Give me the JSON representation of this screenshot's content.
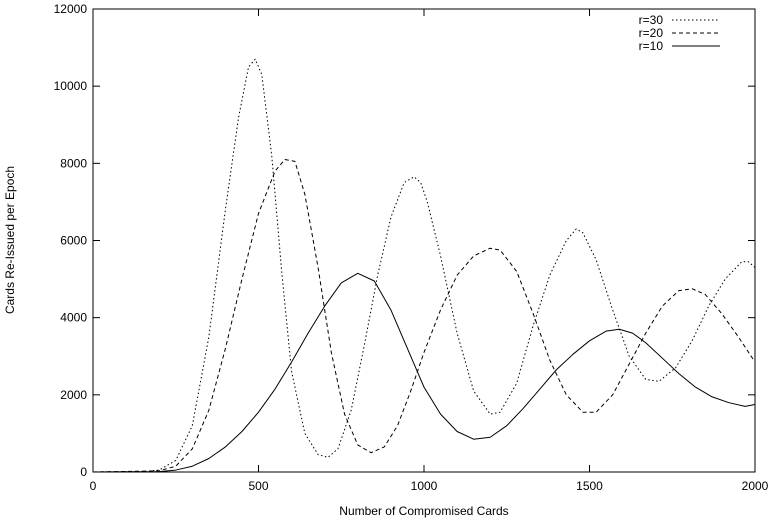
{
  "chart_data": {
    "type": "line",
    "xlabel": "Number of Compromised Cards",
    "ylabel": "Cards Re-Issued per Epoch",
    "xlim": [
      0,
      2000
    ],
    "ylim": [
      0,
      12000
    ],
    "xticks": [
      0,
      500,
      1000,
      1500,
      2000
    ],
    "yticks": [
      0,
      2000,
      4000,
      6000,
      8000,
      10000,
      12000
    ],
    "grid": false,
    "legend_position": "top-right",
    "series": [
      {
        "name": "r=30",
        "style": "dotted",
        "x": [
          0,
          150,
          200,
          250,
          300,
          350,
          400,
          440,
          470,
          490,
          510,
          540,
          570,
          600,
          640,
          680,
          710,
          740,
          780,
          820,
          860,
          900,
          940,
          970,
          990,
          1010,
          1050,
          1100,
          1150,
          1200,
          1230,
          1280,
          1330,
          1380,
          1430,
          1460,
          1480,
          1520,
          1570,
          1620,
          1670,
          1710,
          1760,
          1810,
          1860,
          1910,
          1960,
          1980,
          2000
        ],
        "y": [
          0,
          10,
          50,
          300,
          1200,
          3500,
          6800,
          9200,
          10500,
          10700,
          10300,
          8200,
          5200,
          2600,
          1000,
          450,
          380,
          600,
          1600,
          3300,
          5100,
          6600,
          7500,
          7650,
          7500,
          7000,
          5600,
          3600,
          2100,
          1500,
          1550,
          2300,
          3800,
          5100,
          6000,
          6300,
          6200,
          5500,
          4200,
          3000,
          2400,
          2350,
          2700,
          3400,
          4300,
          5000,
          5450,
          5450,
          5300
        ]
      },
      {
        "name": "r=20",
        "style": "dashed",
        "x": [
          0,
          200,
          250,
          300,
          350,
          400,
          450,
          500,
          550,
          580,
          610,
          640,
          680,
          720,
          760,
          800,
          840,
          880,
          920,
          960,
          1000,
          1050,
          1100,
          1150,
          1200,
          1230,
          1280,
          1330,
          1380,
          1430,
          1480,
          1520,
          1570,
          1620,
          1670,
          1720,
          1770,
          1810,
          1850,
          1900,
          1950,
          2000
        ],
        "y": [
          0,
          30,
          150,
          600,
          1600,
          3200,
          5000,
          6700,
          7800,
          8100,
          8050,
          7200,
          5300,
          3100,
          1500,
          700,
          500,
          650,
          1200,
          2100,
          3100,
          4200,
          5100,
          5600,
          5800,
          5750,
          5200,
          4100,
          2900,
          2000,
          1550,
          1550,
          2000,
          2800,
          3600,
          4300,
          4700,
          4750,
          4600,
          4100,
          3500,
          2850
        ]
      },
      {
        "name": "r=10",
        "style": "solid",
        "x": [
          0,
          200,
          250,
          300,
          350,
          400,
          450,
          500,
          550,
          600,
          650,
          700,
          750,
          800,
          850,
          900,
          950,
          1000,
          1050,
          1100,
          1150,
          1200,
          1250,
          1300,
          1350,
          1400,
          1450,
          1500,
          1550,
          1590,
          1630,
          1670,
          1720,
          1770,
          1820,
          1870,
          1920,
          1970,
          2000
        ],
        "y": [
          0,
          10,
          50,
          150,
          350,
          650,
          1050,
          1550,
          2150,
          2850,
          3600,
          4300,
          4900,
          5150,
          4950,
          4200,
          3200,
          2200,
          1500,
          1050,
          850,
          900,
          1200,
          1650,
          2150,
          2650,
          3050,
          3400,
          3650,
          3700,
          3600,
          3350,
          2950,
          2550,
          2200,
          1950,
          1800,
          1700,
          1750
        ]
      }
    ]
  }
}
